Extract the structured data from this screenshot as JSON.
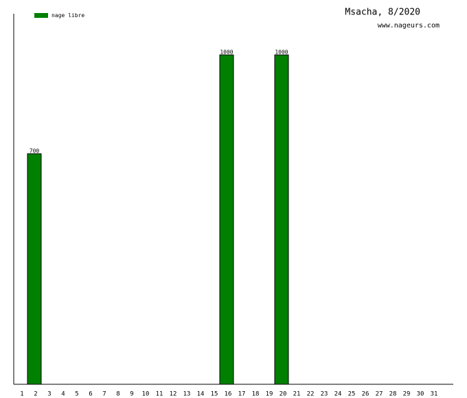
{
  "chart_data": {
    "type": "bar",
    "title": "Msacha, 8/2020",
    "subtitle": "www.nageurs.com",
    "categories": [
      "1",
      "2",
      "3",
      "4",
      "5",
      "6",
      "7",
      "8",
      "9",
      "10",
      "11",
      "12",
      "13",
      "14",
      "15",
      "16",
      "17",
      "18",
      "19",
      "20",
      "21",
      "22",
      "23",
      "24",
      "25",
      "26",
      "27",
      "28",
      "29",
      "30",
      "31"
    ],
    "series": [
      {
        "name": "nage libre",
        "color": "#008000",
        "values": [
          null,
          700,
          null,
          null,
          null,
          null,
          null,
          null,
          null,
          null,
          null,
          null,
          null,
          null,
          null,
          1000,
          null,
          null,
          null,
          1000,
          null,
          null,
          null,
          null,
          null,
          null,
          null,
          null,
          null,
          null,
          null
        ]
      }
    ],
    "ylim": [
      0,
      1125
    ]
  }
}
